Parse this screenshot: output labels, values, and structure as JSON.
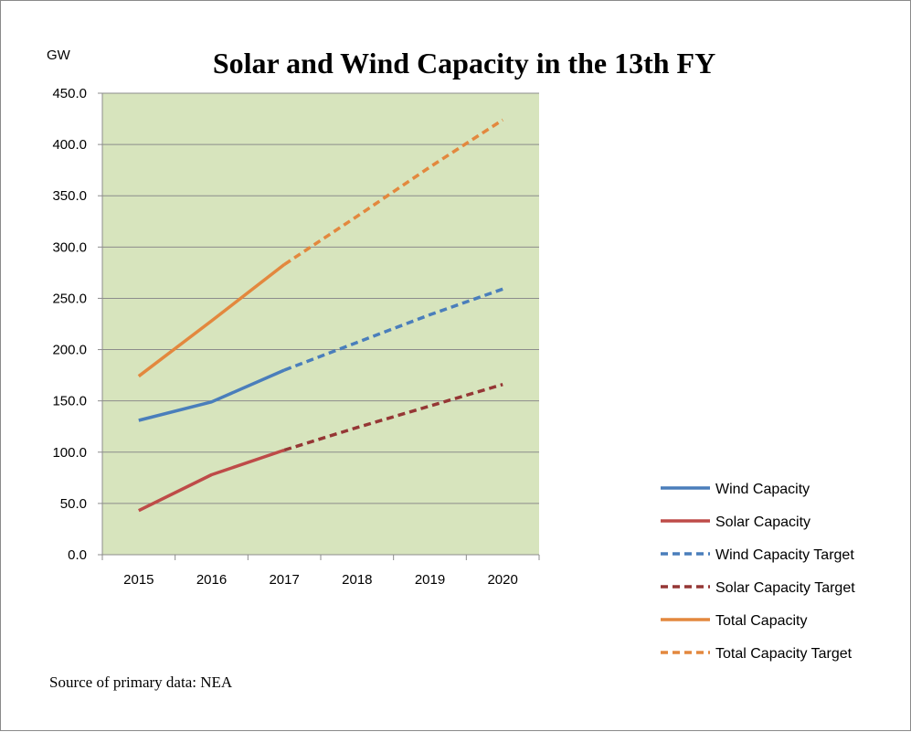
{
  "chart_data": {
    "type": "line",
    "title": "Solar and Wind Capacity in the 13th FY",
    "ylabel": "GW",
    "xlabel": "",
    "categories": [
      "2015",
      "2016",
      "2017",
      "2018",
      "2019",
      "2020"
    ],
    "ylim": [
      0,
      450
    ],
    "yticks": [
      "0.0",
      "50.0",
      "100.0",
      "150.0",
      "200.0",
      "250.0",
      "300.0",
      "350.0",
      "400.0",
      "450.0"
    ],
    "plot_background": "#d7e4bd",
    "grid": "horizontal",
    "legend_position": "right",
    "series": [
      {
        "name": "Wind Capacity",
        "values": [
          131,
          149,
          180,
          null,
          null,
          null
        ],
        "color": "#4a7ebb",
        "style": "solid"
      },
      {
        "name": "Solar Capacity",
        "values": [
          43,
          78,
          102,
          null,
          null,
          null
        ],
        "color": "#be4b48",
        "style": "solid"
      },
      {
        "name": "Wind Capacity Target",
        "values": [
          null,
          null,
          180,
          207,
          234,
          259
        ],
        "color": "#4a7ebb",
        "style": "dashed"
      },
      {
        "name": "Solar Capacity Target",
        "values": [
          null,
          null,
          102,
          124,
          145,
          166
        ],
        "color": "#953735",
        "style": "dashed"
      },
      {
        "name": "Total Capacity",
        "values": [
          174,
          228,
          283,
          null,
          null,
          null
        ],
        "color": "#e3883e",
        "style": "solid"
      },
      {
        "name": "Total Capacity Target",
        "values": [
          null,
          null,
          283,
          330,
          378,
          424
        ],
        "color": "#e3883e",
        "style": "dashed"
      }
    ]
  },
  "footer": {
    "source": "Source of primary data:  NEA"
  }
}
